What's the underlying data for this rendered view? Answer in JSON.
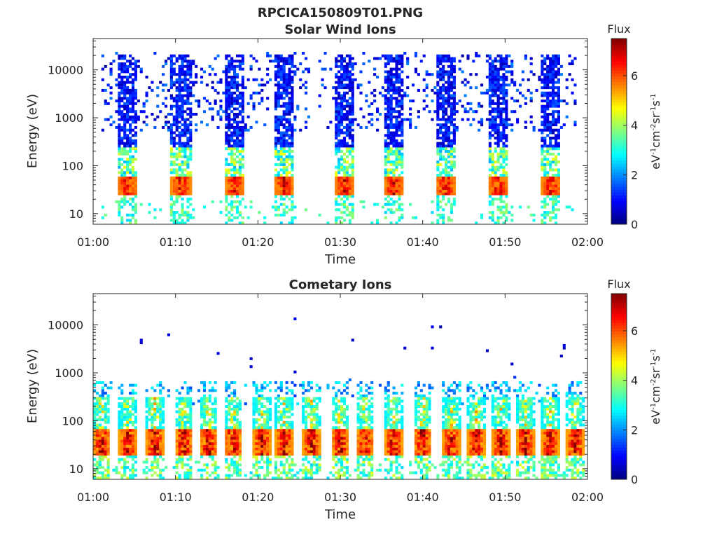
{
  "figure_title": "RPCICA150809T01.PNG",
  "chart_data": [
    {
      "type": "heatmap",
      "title": "Solar Wind Ions",
      "xlabel": "Time",
      "ylabel": "Energy (eV)",
      "x_ticks": [
        "01:00",
        "01:10",
        "01:20",
        "01:30",
        "01:40",
        "01:50",
        "02:00"
      ],
      "xlim": [
        "01:00",
        "02:00"
      ],
      "y_scale": "log",
      "y_ticks": [
        "10",
        "100",
        "1000",
        "10000"
      ],
      "ylim": [
        6,
        45000
      ],
      "colorbar": {
        "title": "Flux",
        "unit_html": "eV<tspan dy='-6' font-size='10'>-1</tspan><tspan dy='6'>cm</tspan><tspan dy='-6' font-size='10'>-2</tspan><tspan dy='6'>sr</tspan><tspan dy='-6' font-size='10'>-1</tspan><tspan dy='6'>s</tspan><tspan dy='-6' font-size='10'>-1</tspan>",
        "ticks": [
          "0",
          "2",
          "4",
          "6"
        ],
        "range": [
          0,
          7.5
        ],
        "colormap": "jet"
      },
      "bursts_minutes": [
        4.2,
        10.7,
        17.2,
        23.2,
        30.5,
        36.5,
        42.8,
        49.2,
        55.6
      ],
      "peak_energy_eV": 40,
      "grid": false
    },
    {
      "type": "heatmap",
      "title": "Cometary Ions",
      "xlabel": "Time",
      "ylabel": "Energy (eV)",
      "x_ticks": [
        "01:00",
        "01:10",
        "01:20",
        "01:30",
        "01:40",
        "01:50",
        "02:00"
      ],
      "xlim": [
        "01:00",
        "02:00"
      ],
      "y_scale": "log",
      "y_ticks": [
        "10",
        "100",
        "1000",
        "10000"
      ],
      "ylim": [
        6,
        45000
      ],
      "colorbar": {
        "title": "Flux",
        "ticks": [
          "0",
          "2",
          "4",
          "6"
        ],
        "range": [
          0,
          7.5
        ],
        "colormap": "jet"
      },
      "bursts_minutes": [
        1.0,
        4.2,
        7.5,
        11.0,
        14.0,
        17.0,
        20.5,
        23.2,
        26.5,
        30.0,
        33.0,
        36.5,
        40.0,
        43.5,
        46.5,
        49.5,
        52.5,
        55.5,
        58.5
      ],
      "peak_energy_eV": 35,
      "grid": false
    }
  ]
}
